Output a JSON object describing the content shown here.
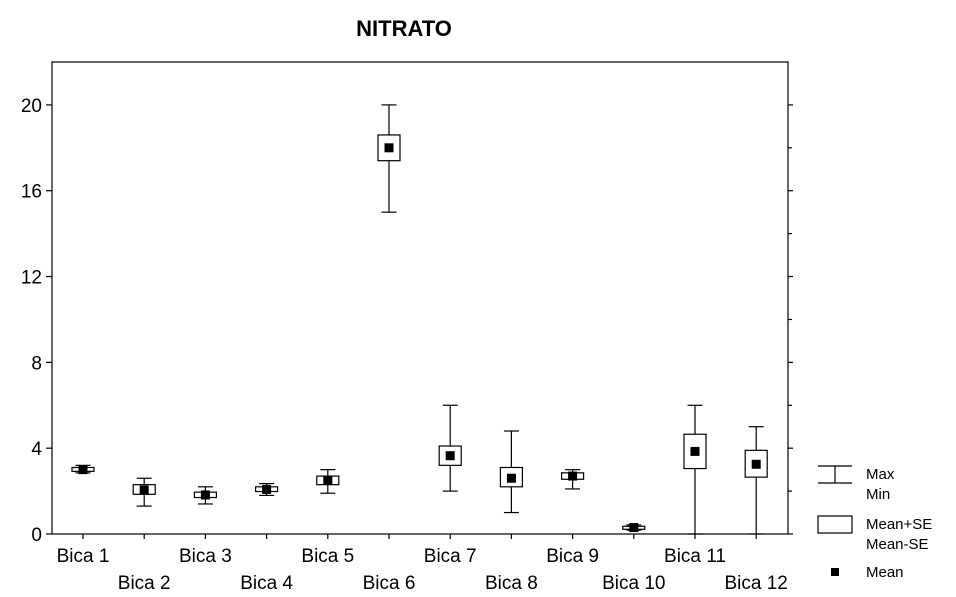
{
  "chart_data": {
    "type": "box",
    "title": "NITRATO",
    "xlabel": "",
    "ylabel": "",
    "ylim": [
      0,
      22
    ],
    "yticks": [
      0,
      4,
      8,
      12,
      16,
      20
    ],
    "grid": false,
    "legend_position": "right",
    "categories": [
      "Bica 1",
      "Bica 2",
      "Bica 3",
      "Bica 4",
      "Bica 5",
      "Bica 6",
      "Bica 7",
      "Bica 8",
      "Bica 9",
      "Bica 10",
      "Bica 11",
      "Bica 12"
    ],
    "series": [
      {
        "category": "Bica 1",
        "min": 2.85,
        "max": 3.2,
        "mean_minus_se": 2.92,
        "mean_plus_se": 3.1,
        "mean": 3.0
      },
      {
        "category": "Bica 2",
        "min": 1.3,
        "max": 2.6,
        "mean_minus_se": 1.85,
        "mean_plus_se": 2.3,
        "mean": 2.05
      },
      {
        "category": "Bica 3",
        "min": 1.4,
        "max": 2.2,
        "mean_minus_se": 1.7,
        "mean_plus_se": 1.95,
        "mean": 1.82
      },
      {
        "category": "Bica 4",
        "min": 1.8,
        "max": 2.35,
        "mean_minus_se": 1.98,
        "mean_plus_se": 2.2,
        "mean": 2.08
      },
      {
        "category": "Bica 5",
        "min": 1.9,
        "max": 3.0,
        "mean_minus_se": 2.3,
        "mean_plus_se": 2.7,
        "mean": 2.5
      },
      {
        "category": "Bica 6",
        "min": 15.0,
        "max": 20.0,
        "mean_minus_se": 17.4,
        "mean_plus_se": 18.6,
        "mean": 18.0
      },
      {
        "category": "Bica 7",
        "min": 2.0,
        "max": 6.0,
        "mean_minus_se": 3.2,
        "mean_plus_se": 4.1,
        "mean": 3.65
      },
      {
        "category": "Bica 8",
        "min": 1.0,
        "max": 4.8,
        "mean_minus_se": 2.2,
        "mean_plus_se": 3.1,
        "mean": 2.6
      },
      {
        "category": "Bica 9",
        "min": 2.1,
        "max": 3.0,
        "mean_minus_se": 2.55,
        "mean_plus_se": 2.85,
        "mean": 2.7
      },
      {
        "category": "Bica 10",
        "min": 0.18,
        "max": 0.42,
        "mean_minus_se": 0.22,
        "mean_plus_se": 0.36,
        "mean": 0.3
      },
      {
        "category": "Bica 11",
        "min": 0.0,
        "max": 6.0,
        "mean_minus_se": 3.05,
        "mean_plus_se": 4.65,
        "mean": 3.85
      },
      {
        "category": "Bica 12",
        "min": 0.0,
        "max": 5.0,
        "mean_minus_se": 2.65,
        "mean_plus_se": 3.9,
        "mean": 3.25
      }
    ],
    "legend": [
      {
        "symbol": "whisker",
        "labels": [
          "Max",
          "Min"
        ]
      },
      {
        "symbol": "box",
        "labels": [
          "Mean+SE",
          "Mean-SE"
        ]
      },
      {
        "symbol": "mean",
        "labels": [
          "Mean"
        ]
      }
    ]
  }
}
